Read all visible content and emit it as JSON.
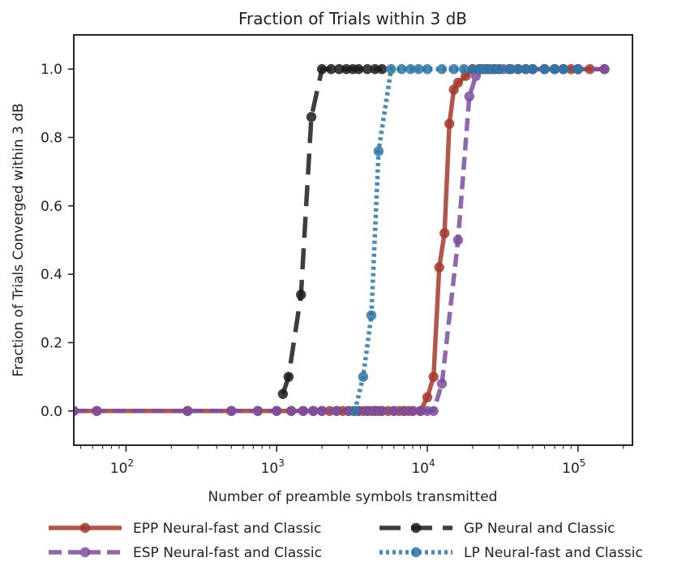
{
  "chart_data": {
    "type": "line",
    "title": "Fraction of Trials within 3 dB",
    "xlabel": "Number of preamble symbols transmitted",
    "ylabel": "Fraction of Trials Converged within 3 dB",
    "xscale": "log",
    "xlim": [
      45,
      230000
    ],
    "ylim": [
      -0.1,
      1.1
    ],
    "yticks": [
      0.0,
      0.2,
      0.4,
      0.6,
      0.8,
      1.0
    ],
    "ytick_labels": [
      "0.0",
      "0.2",
      "0.4",
      "0.6",
      "0.8",
      "1.0"
    ],
    "xticks": [
      100,
      1000,
      10000,
      100000
    ],
    "xtick_base": "10",
    "xtick_exponents": [
      "2",
      "3",
      "4",
      "5"
    ],
    "grid": false,
    "legend_position": "bottom-outside",
    "series": [
      {
        "name": "EPP Neural-fast and Classic",
        "color": "#a43a2d",
        "line_style": "solid",
        "x": [
          45,
          64,
          256,
          500,
          750,
          1000,
          1250,
          1500,
          1750,
          2000,
          2250,
          2500,
          2750,
          3000,
          3250,
          3500,
          3750,
          4000,
          4250,
          4500,
          4750,
          5000,
          5500,
          6000,
          6500,
          7000,
          7500,
          8000,
          9000,
          10000,
          11000,
          12000,
          13000,
          14000,
          15000,
          16000,
          18000,
          20000,
          22000,
          24000,
          26000,
          28000,
          30000,
          35000,
          40000,
          45000,
          50000,
          60000,
          70000,
          80000,
          90000,
          100000,
          120000,
          150000
        ],
        "y": [
          0,
          0,
          0,
          0,
          0,
          0,
          0,
          0,
          0,
          0,
          0,
          0,
          0,
          0,
          0,
          0,
          0,
          0,
          0,
          0,
          0,
          0,
          0,
          0,
          0,
          0,
          0,
          0,
          0,
          0.04,
          0.1,
          0.42,
          0.52,
          0.84,
          0.94,
          0.96,
          0.98,
          1.0,
          1.0,
          1.0,
          1.0,
          1.0,
          1.0,
          1.0,
          1.0,
          1.0,
          1.0,
          1.0,
          1.0,
          1.0,
          1.0,
          1.0,
          1.0,
          1.0
        ]
      },
      {
        "name": "ESP Neural-fast and Classic",
        "color": "#7b4f9e",
        "line_style": "dashed",
        "x": [
          45,
          64,
          256,
          500,
          750,
          1000,
          1250,
          1500,
          1750,
          2000,
          2500,
          3000,
          3500,
          4000,
          4500,
          5000,
          6000,
          7000,
          8000,
          9000,
          10000,
          11000,
          12500,
          16000,
          19000,
          21000,
          23000,
          25000,
          28000,
          32000,
          36000,
          40000,
          50000,
          60000,
          70000,
          80000,
          100000,
          150000
        ],
        "y": [
          0,
          0,
          0,
          0,
          0,
          0,
          0,
          0,
          0,
          0,
          0,
          0,
          0,
          0,
          0,
          0,
          0,
          0,
          0,
          0,
          0,
          0,
          0.08,
          0.5,
          0.92,
          0.98,
          1.0,
          1.0,
          1.0,
          1.0,
          1.0,
          1.0,
          1.0,
          1.0,
          1.0,
          1.0,
          1.0,
          1.0
        ]
      },
      {
        "name": "GP Neural and Classic",
        "color": "#1c1c1c",
        "line_style": "long-dashed",
        "x": [
          1100,
          1200,
          1450,
          1700,
          2000,
          2300,
          2600,
          2900,
          3200,
          3500,
          4000,
          4500,
          5000
        ],
        "y": [
          0.05,
          0.1,
          0.34,
          0.86,
          1.0,
          1.0,
          1.0,
          1.0,
          1.0,
          1.0,
          1.0,
          1.0,
          1.0
        ]
      },
      {
        "name": "LP Neural-fast and Classic",
        "color": "#2e77a3",
        "line_style": "dotted",
        "x": [
          3300,
          3750,
          4250,
          4750,
          5750,
          6750,
          7750,
          8750,
          10000,
          12500,
          15000,
          17500,
          20000,
          22500,
          25000,
          27500,
          30000,
          35000,
          40000,
          45000,
          50000,
          60000,
          70000,
          80000,
          100000
        ],
        "y": [
          0.0,
          0.1,
          0.28,
          0.76,
          1.0,
          1.0,
          1.0,
          1.0,
          1.0,
          1.0,
          1.0,
          1.0,
          1.0,
          1.0,
          1.0,
          1.0,
          1.0,
          1.0,
          1.0,
          1.0,
          1.0,
          1.0,
          1.0,
          1.0,
          1.0
        ]
      }
    ]
  }
}
